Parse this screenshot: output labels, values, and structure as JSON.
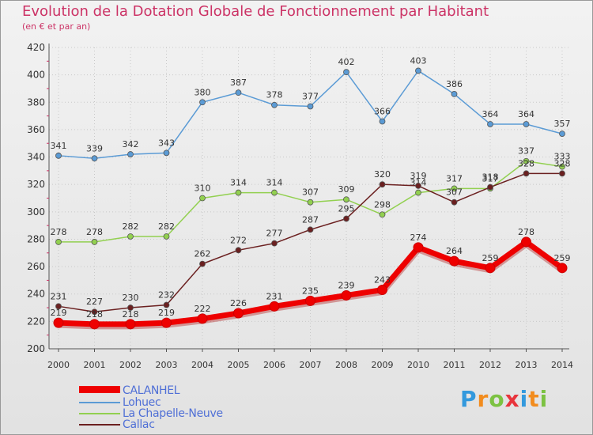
{
  "header": {
    "title": "Evolution de la Dotation Globale de Fonctionnement par Habitant",
    "subtitle": "(en € et par an)"
  },
  "logo": {
    "letters": [
      "P",
      "r",
      "o",
      "x",
      "i",
      "t",
      "i"
    ],
    "colors": [
      "#3399dd",
      "#f28c1e",
      "#7cc242",
      "#e8343c",
      "#3399dd",
      "#f28c1e",
      "#7cc242"
    ]
  },
  "chart_data": {
    "type": "line",
    "title": "Evolution de la Dotation Globale de Fonctionnement par Habitant",
    "subtitle": "(en € et par an)",
    "xlabel": "",
    "ylabel": "",
    "x": [
      2000,
      2001,
      2002,
      2003,
      2004,
      2005,
      2006,
      2007,
      2008,
      2009,
      2010,
      2011,
      2012,
      2013,
      2014
    ],
    "ylim": [
      200,
      420
    ],
    "yticks": [
      200,
      220,
      240,
      260,
      280,
      300,
      320,
      340,
      360,
      380,
      400,
      420
    ],
    "grid": true,
    "legend_position": "bottom-left",
    "series": [
      {
        "name": "CALANHEL",
        "color": "#ee0000",
        "values": [
          219,
          218,
          218,
          219,
          222,
          226,
          231,
          235,
          239,
          243,
          274,
          264,
          259,
          278,
          259
        ]
      },
      {
        "name": "Lohuec",
        "color": "#5b9bd5",
        "values": [
          341,
          339,
          342,
          343,
          380,
          387,
          378,
          377,
          402,
          366,
          403,
          386,
          364,
          364,
          357
        ]
      },
      {
        "name": "La Chapelle-Neuve",
        "color": "#92d050",
        "values": [
          278,
          278,
          282,
          282,
          310,
          314,
          314,
          307,
          309,
          298,
          314,
          317,
          317,
          337,
          333
        ]
      },
      {
        "name": "Callac",
        "color": "#6b2020",
        "values": [
          231,
          227,
          230,
          232,
          262,
          272,
          277,
          287,
          295,
          320,
          319,
          307,
          318,
          328,
          328
        ]
      }
    ]
  }
}
